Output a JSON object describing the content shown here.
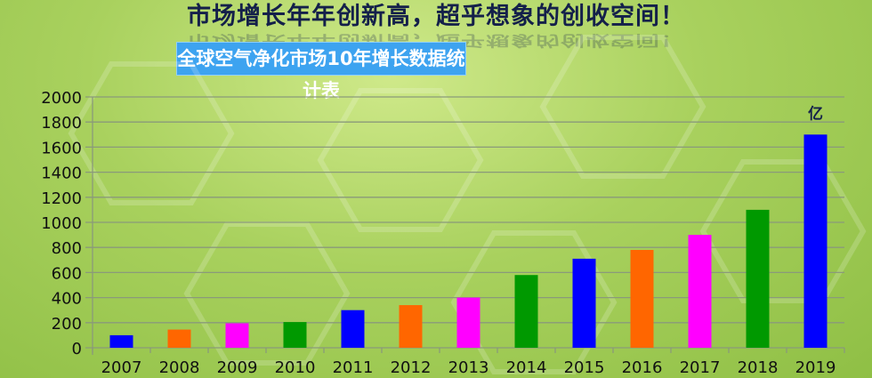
{
  "header": {
    "title": "市场增长年年创新高，超乎想象的创收空间！",
    "subtitle": "全球空气净化市场10年增长数据统计表"
  },
  "chart_data": {
    "type": "bar",
    "title": "全球空气净化市场10年增长数据统计表",
    "unit_label": "亿",
    "categories": [
      "2007",
      "2008",
      "2009",
      "2010",
      "2011",
      "2012",
      "2013",
      "2014",
      "2015",
      "2016",
      "2017",
      "2018",
      "2019"
    ],
    "values": [
      100,
      145,
      195,
      205,
      300,
      340,
      400,
      580,
      710,
      780,
      900,
      1100,
      1700
    ],
    "colors": [
      "#0000ff",
      "#ff6600",
      "#ff00ff",
      "#009900",
      "#0000ff",
      "#ff6600",
      "#ff00ff",
      "#009900",
      "#0000ff",
      "#ff6600",
      "#ff00ff",
      "#009900",
      "#0000ff"
    ],
    "yticks": [
      "0",
      "200",
      "400",
      "600",
      "800",
      "1000",
      "1200",
      "1400",
      "1600",
      "1800",
      "2000"
    ],
    "ylim": [
      0,
      2000
    ],
    "grid": true,
    "legend": "none"
  }
}
